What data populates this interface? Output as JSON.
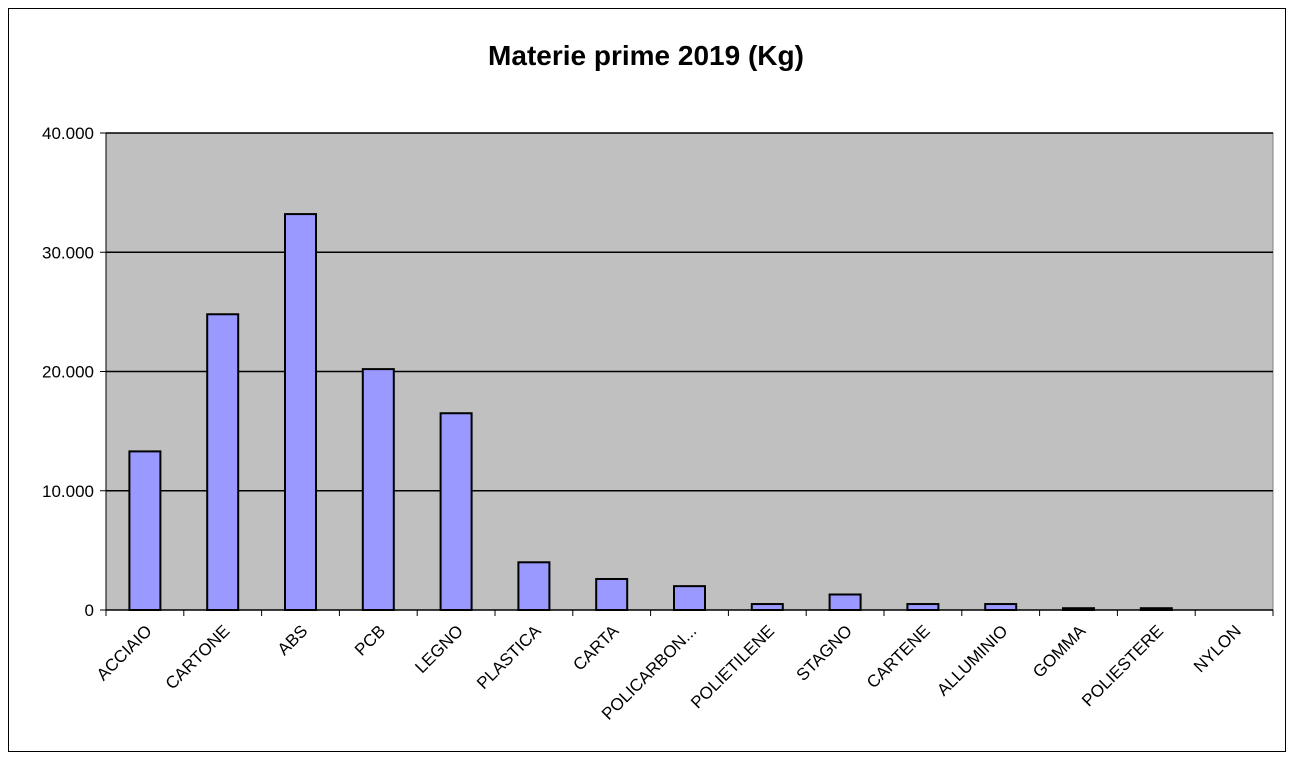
{
  "chart_data": {
    "type": "bar",
    "title": "Materie prime 2019 (Kg)",
    "xlabel": "",
    "ylabel": "",
    "ylim": [
      0,
      40000
    ],
    "y_ticks": [
      "0",
      "10.000",
      "20.000",
      "30.000",
      "40.000"
    ],
    "y_tick_values": [
      0,
      10000,
      20000,
      30000,
      40000
    ],
    "categories": [
      "ACCIAIO",
      "CARTONE",
      "ABS",
      "PCB",
      "LEGNO",
      "PLASTICA",
      "CARTA",
      "POLICARBON...",
      "POLIETILENE",
      "STAGNO",
      "CARTENE",
      "ALLUMINIO",
      "GOMMA",
      "POLIESTERE",
      "NYLON"
    ],
    "values": [
      13300,
      24800,
      33200,
      20200,
      16500,
      4000,
      2600,
      2000,
      500,
      1300,
      500,
      500,
      150,
      150,
      0
    ],
    "grid": true,
    "legend": "none",
    "colors": {
      "bar_fill": "#9999ff",
      "bar_stroke": "#000000",
      "plot_bg": "#c0c0c0",
      "gridline": "#000000"
    }
  }
}
